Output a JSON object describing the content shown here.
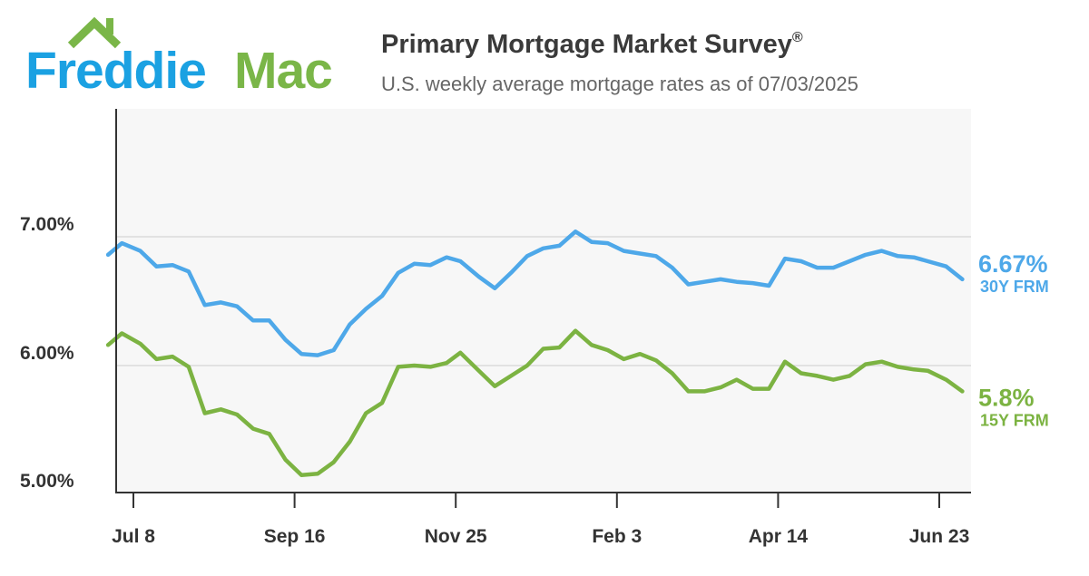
{
  "logo": {
    "text_part1": "Freddie",
    "text_part2": "Mac",
    "blue": "#1ba1e2",
    "green": "#7ab648"
  },
  "header": {
    "title": "Primary Mortgage Market Survey",
    "title_mark": "®",
    "subtitle": "U.S. weekly average mortgage rates as of 07/03/2025"
  },
  "chart_data": {
    "type": "line",
    "ylim": [
      5.0,
      7.0
    ],
    "y_ticks": [
      5.0,
      6.0,
      7.0
    ],
    "y_tick_labels": [
      "5.00%",
      "6.00%",
      "7.00%"
    ],
    "x_ticks": [
      "2024-07-08",
      "2024-09-16",
      "2024-11-25",
      "2025-02-03",
      "2025-04-14",
      "2025-06-23"
    ],
    "x_tick_labels": [
      "Jul 8",
      "Sep 16",
      "Nov 25",
      "Feb 3",
      "Apr 14",
      "Jun 23"
    ],
    "grid": "horizontal",
    "legend": "right",
    "x": [
      "2024-06-27",
      "2024-07-03",
      "2024-07-11",
      "2024-07-18",
      "2024-07-25",
      "2024-08-01",
      "2024-08-08",
      "2024-08-15",
      "2024-08-22",
      "2024-08-29",
      "2024-09-05",
      "2024-09-12",
      "2024-09-19",
      "2024-09-26",
      "2024-10-03",
      "2024-10-10",
      "2024-10-17",
      "2024-10-24",
      "2024-10-31",
      "2024-11-07",
      "2024-11-14",
      "2024-11-21",
      "2024-11-27",
      "2024-12-05",
      "2024-12-12",
      "2024-12-19",
      "2024-12-26",
      "2025-01-02",
      "2025-01-09",
      "2025-01-16",
      "2025-01-23",
      "2025-01-30",
      "2025-02-06",
      "2025-02-13",
      "2025-02-20",
      "2025-02-27",
      "2025-03-06",
      "2025-03-13",
      "2025-03-20",
      "2025-03-27",
      "2025-04-03",
      "2025-04-10",
      "2025-04-17",
      "2025-04-24",
      "2025-05-01",
      "2025-05-08",
      "2025-05-15",
      "2025-05-22",
      "2025-05-29",
      "2025-06-05",
      "2025-06-12",
      "2025-06-18",
      "2025-06-26",
      "2025-07-03"
    ],
    "series": [
      {
        "name": "30Y FRM",
        "color": "#4ea8e9",
        "end_label": "6.67%",
        "values": [
          6.86,
          6.95,
          6.89,
          6.77,
          6.78,
          6.73,
          6.47,
          6.49,
          6.46,
          6.35,
          6.35,
          6.2,
          6.09,
          6.08,
          6.12,
          6.32,
          6.44,
          6.54,
          6.72,
          6.79,
          6.78,
          6.84,
          6.81,
          6.69,
          6.6,
          6.72,
          6.85,
          6.91,
          6.93,
          7.04,
          6.96,
          6.95,
          6.89,
          6.87,
          6.85,
          6.76,
          6.63,
          6.65,
          6.67,
          6.65,
          6.64,
          6.62,
          6.83,
          6.81,
          6.76,
          6.76,
          6.81,
          6.86,
          6.89,
          6.85,
          6.84,
          6.81,
          6.77,
          6.67
        ]
      },
      {
        "name": "15Y FRM",
        "color": "#7cb342",
        "end_label": "5.8%",
        "values": [
          6.16,
          6.25,
          6.17,
          6.05,
          6.07,
          5.99,
          5.63,
          5.66,
          5.62,
          5.51,
          5.47,
          5.27,
          5.15,
          5.16,
          5.25,
          5.41,
          5.63,
          5.71,
          5.99,
          6.0,
          5.99,
          6.02,
          6.1,
          5.96,
          5.84,
          5.92,
          6.0,
          6.13,
          6.14,
          6.27,
          6.16,
          6.12,
          6.05,
          6.09,
          6.04,
          5.94,
          5.8,
          5.8,
          5.83,
          5.89,
          5.82,
          5.82,
          6.03,
          5.94,
          5.92,
          5.89,
          5.92,
          6.01,
          6.03,
          5.99,
          5.97,
          5.96,
          5.89,
          5.8
        ]
      }
    ]
  }
}
